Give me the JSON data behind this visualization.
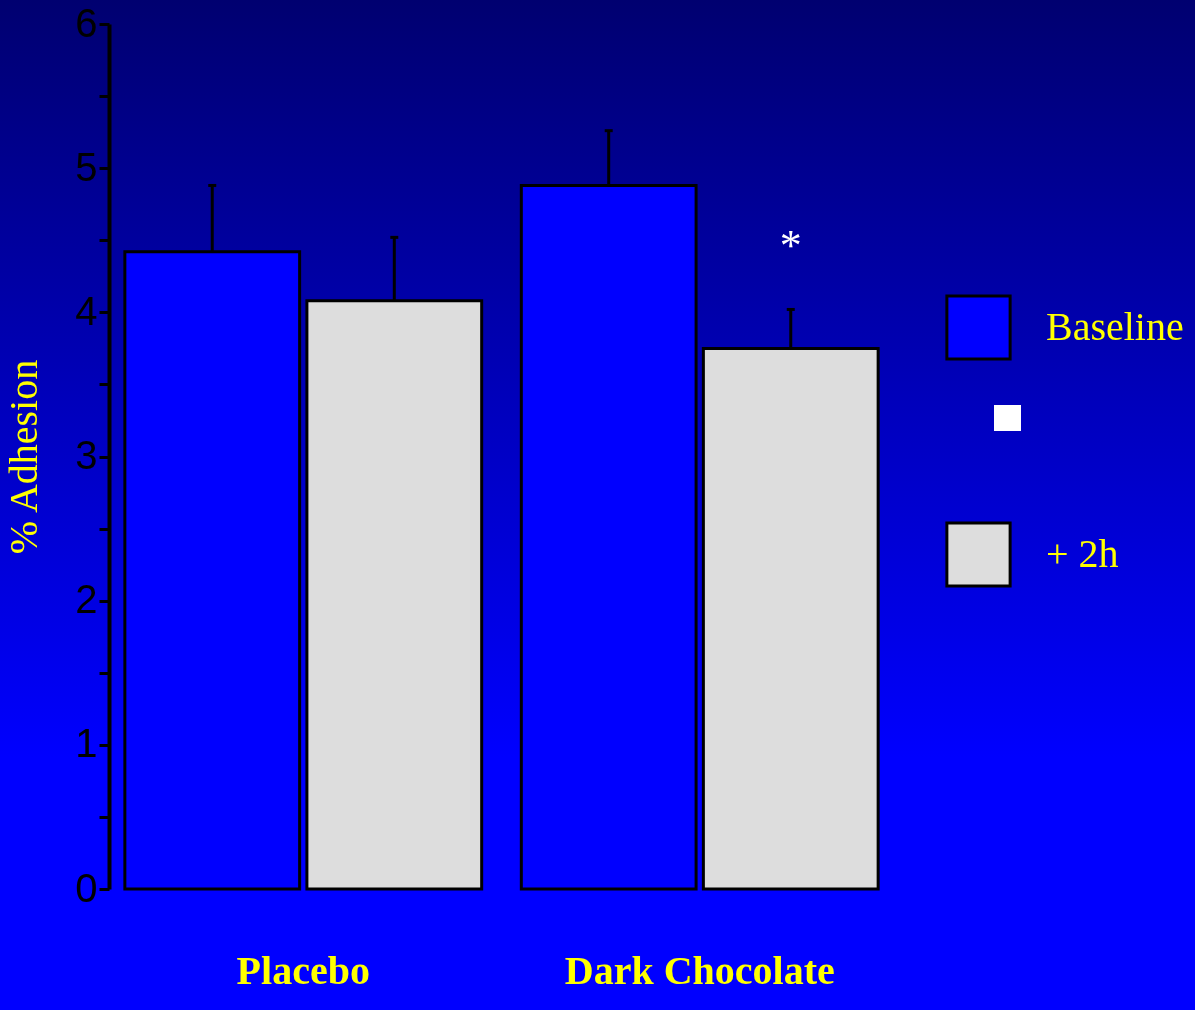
{
  "chart_data": {
    "type": "bar",
    "ylabel": "% Adhesion",
    "categories": [
      "Placebo",
      "Dark Chocolate"
    ],
    "series": [
      {
        "name": "Baseline",
        "color": "#0000ff",
        "values": [
          4.42,
          4.88
        ],
        "errors": [
          [
            4.42,
            4.88
          ],
          [
            4.88,
            5.26
          ]
        ]
      },
      {
        "name": "+ 2h",
        "color": "#dddddd",
        "values": [
          4.08,
          3.75
        ],
        "errors": [
          [
            4.08,
            4.52
          ],
          [
            3.75,
            4.02
          ]
        ]
      }
    ],
    "ylim": [
      0,
      6
    ],
    "yticks": [
      0,
      {
        "value": 0.5,
        "label": null
      },
      1,
      {
        "value": 1.5,
        "label": null
      },
      2,
      {
        "value": 2.5,
        "label": null
      },
      3,
      {
        "value": 3.5,
        "label": null
      },
      4,
      {
        "value": 4.5,
        "label": null
      },
      5,
      {
        "value": 5.5,
        "label": null
      },
      6
    ],
    "annotations": [
      {
        "text": "*",
        "x": "Dark Chocolate",
        "y": 4.3
      }
    ],
    "legend": "right"
  }
}
